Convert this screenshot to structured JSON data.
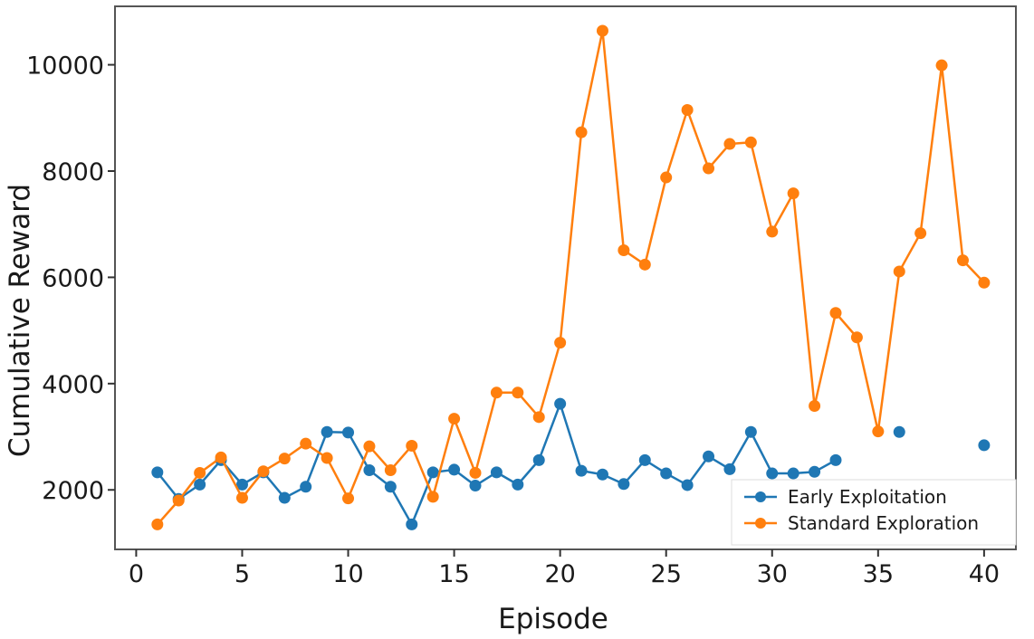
{
  "chart_data": {
    "type": "line",
    "title": "",
    "xlabel": "Episode",
    "ylabel": "Cumulative Reward",
    "xlim": [
      -1,
      41.5
    ],
    "ylim": [
      880,
      11100
    ],
    "xticks": [
      0,
      5,
      10,
      15,
      20,
      25,
      30,
      35,
      40
    ],
    "yticks": [
      2000,
      4000,
      6000,
      8000,
      10000
    ],
    "grid": false,
    "legend_position": "bottom-right",
    "x": [
      1,
      2,
      3,
      4,
      5,
      6,
      7,
      8,
      9,
      10,
      11,
      12,
      13,
      14,
      15,
      16,
      17,
      18,
      19,
      20,
      21,
      22,
      23,
      24,
      25,
      26,
      27,
      28,
      29,
      30,
      31,
      32,
      33,
      34,
      35,
      36,
      37,
      38,
      39,
      40
    ],
    "series": [
      {
        "name": "Early Exploitation",
        "color": "#1f77b4",
        "values": [
          2330,
          1830,
          2100,
          2560,
          2100,
          2330,
          1850,
          2060,
          3090,
          3080,
          2370,
          2060,
          1350,
          2330,
          2380,
          2080,
          2330,
          2100,
          2560,
          3620,
          2360,
          2290,
          2110,
          2560,
          2310,
          2090,
          2630,
          2390,
          3090,
          2310,
          2310,
          2340,
          2560,
          null,
          null,
          3090,
          null,
          null,
          null,
          2840
        ]
      },
      {
        "name": "Standard Exploration",
        "color": "#ff7f0e",
        "values": [
          1350,
          1800,
          2320,
          2610,
          1850,
          2350,
          2590,
          2870,
          2600,
          1840,
          2820,
          2370,
          2830,
          1870,
          3340,
          2320,
          3830,
          3830,
          3370,
          4770,
          8730,
          10640,
          6510,
          6240,
          7880,
          9150,
          8050,
          8510,
          8540,
          6860,
          7580,
          3580,
          5330,
          4870,
          3100,
          6110,
          6830,
          9990,
          6320,
          5900
        ]
      }
    ]
  }
}
